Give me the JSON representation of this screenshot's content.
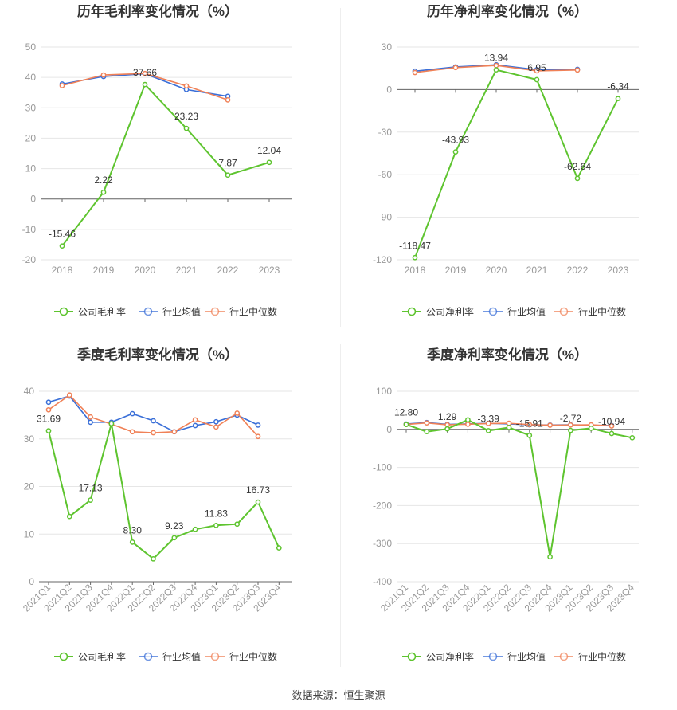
{
  "source": "数据来源：恒生聚源",
  "colors": {
    "company": "#5ec42f",
    "avg": "#3a6fd8",
    "median": "#f08157",
    "grid": "#e6e6e6",
    "axis": "#999999",
    "text": "#333333"
  },
  "chart_data": [
    {
      "type": "line",
      "title": "历年毛利率变化情况（%）",
      "categories": [
        "2018",
        "2019",
        "2020",
        "2021",
        "2022",
        "2023"
      ],
      "ylim": [
        -20,
        50
      ],
      "yticks": [
        -20,
        -10,
        0,
        10,
        20,
        30,
        40,
        50
      ],
      "grid": true,
      "legend": "bottom",
      "series": [
        {
          "name": "公司毛利率",
          "key": "company",
          "values": [
            -15.46,
            2.22,
            37.66,
            23.23,
            7.87,
            12.04
          ],
          "labels": [
            "-15.46",
            "2.22",
            "37.66",
            "23.23",
            "7.87",
            "12.04"
          ]
        },
        {
          "name": "行业均值",
          "key": "avg",
          "values": [
            37.8,
            40.3,
            41.2,
            36.0,
            33.8,
            null
          ]
        },
        {
          "name": "行业中位数",
          "key": "median",
          "values": [
            37.3,
            40.8,
            41.3,
            37.2,
            32.6,
            null
          ]
        }
      ]
    },
    {
      "type": "line",
      "title": "历年净利率变化情况（%）",
      "categories": [
        "2018",
        "2019",
        "2020",
        "2021",
        "2022",
        "2023"
      ],
      "ylim": [
        -120,
        30
      ],
      "yticks": [
        -120,
        -90,
        -60,
        -30,
        0,
        30
      ],
      "grid": true,
      "legend": "bottom",
      "series": [
        {
          "name": "公司净利率",
          "key": "company",
          "values": [
            -118.47,
            -43.93,
            13.94,
            6.95,
            -62.64,
            -6.34
          ],
          "labels": [
            "-118.47",
            "-43.93",
            "13.94",
            "6.95",
            "-62.64",
            "-6.34"
          ]
        },
        {
          "name": "行业均值",
          "key": "avg",
          "values": [
            13.0,
            16.0,
            17.5,
            14.0,
            14.3,
            null
          ]
        },
        {
          "name": "行业中位数",
          "key": "median",
          "values": [
            12.0,
            15.5,
            17.0,
            13.2,
            13.8,
            null
          ]
        }
      ]
    },
    {
      "type": "line",
      "title": "季度毛利率变化情况（%）",
      "categories": [
        "2021Q1",
        "2021Q2",
        "2021Q3",
        "2021Q4",
        "2022Q1",
        "2022Q2",
        "2022Q3",
        "2022Q4",
        "2023Q1",
        "2023Q2",
        "2023Q3",
        "2023Q4"
      ],
      "ylim": [
        0,
        40
      ],
      "yticks": [
        0,
        10,
        20,
        30,
        40
      ],
      "grid": true,
      "legend": "bottom",
      "series": [
        {
          "name": "公司毛利率",
          "key": "company",
          "values": [
            31.69,
            13.7,
            17.13,
            33.2,
            8.3,
            4.8,
            9.23,
            11.0,
            11.83,
            12.1,
            16.73,
            7.1
          ],
          "labels": [
            "31.69",
            "",
            "17.13",
            "",
            "8.30",
            "",
            "9.23",
            "",
            "11.83",
            "",
            "16.73",
            ""
          ]
        },
        {
          "name": "行业均值",
          "key": "avg",
          "values": [
            37.7,
            39.0,
            33.5,
            33.5,
            35.3,
            33.8,
            31.5,
            32.8,
            33.6,
            35.0,
            32.9,
            null
          ]
        },
        {
          "name": "行业中位数",
          "key": "median",
          "values": [
            36.1,
            39.2,
            34.6,
            33.1,
            31.5,
            31.3,
            31.5,
            34.0,
            32.5,
            35.4,
            30.5,
            null
          ]
        }
      ]
    },
    {
      "type": "line",
      "title": "季度净利率变化情况（%）",
      "categories": [
        "2021Q1",
        "2021Q2",
        "2021Q3",
        "2021Q4",
        "2022Q1",
        "2022Q2",
        "2022Q3",
        "2022Q4",
        "2023Q1",
        "2023Q2",
        "2023Q3",
        "2023Q4"
      ],
      "ylim": [
        -400,
        100
      ],
      "yticks": [
        -400,
        -300,
        -200,
        -100,
        0,
        100
      ],
      "grid": true,
      "legend": "bottom",
      "series": [
        {
          "name": "公司净利率",
          "key": "company",
          "values": [
            12.8,
            -6.0,
            1.29,
            25.0,
            -3.39,
            5.0,
            -15.91,
            -335.0,
            -2.72,
            3.0,
            -10.94,
            -22.0
          ],
          "labels": [
            "12.80",
            "",
            "1.29",
            "",
            "-3.39",
            "",
            "-15.91",
            "",
            "-2.72",
            "",
            "-10.94",
            ""
          ]
        },
        {
          "name": "行业均值",
          "key": "avg",
          "values": [
            14.0,
            18.0,
            13.0,
            14.5,
            16.0,
            14.5,
            12.0,
            11.5,
            12.0,
            11.0,
            10.0,
            null
          ]
        },
        {
          "name": "行业中位数",
          "key": "median",
          "values": [
            13.0,
            17.0,
            12.0,
            13.5,
            15.5,
            16.0,
            12.5,
            11.0,
            11.5,
            12.0,
            9.0,
            null
          ]
        }
      ]
    }
  ]
}
